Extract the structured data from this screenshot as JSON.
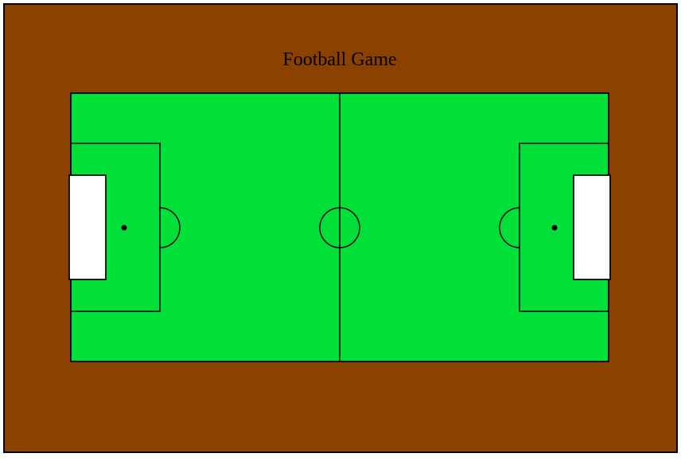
{
  "game": {
    "title": "Football Game"
  },
  "colors": {
    "frame_border": "#000000",
    "surround": "#8b4100",
    "pitch": "#00e038",
    "lines": "#000000",
    "goal": "#ffffff",
    "title_text": "#000000"
  }
}
